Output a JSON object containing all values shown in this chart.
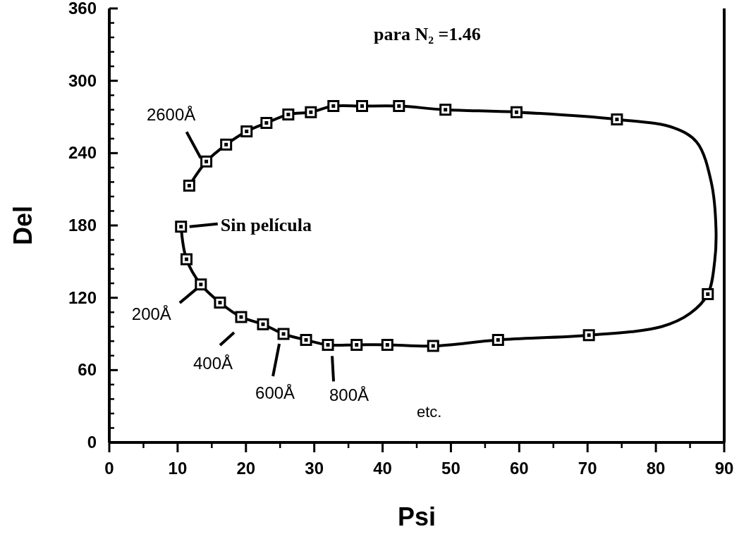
{
  "chart_data": {
    "type": "line",
    "title": "para N₂ =1.46",
    "xlabel": "Psi",
    "ylabel": "Del",
    "xlim": [
      0,
      90
    ],
    "ylim": [
      0,
      360
    ],
    "xticks": [
      0,
      10,
      20,
      30,
      40,
      50,
      60,
      70,
      80,
      90
    ],
    "yticks": [
      0,
      60,
      120,
      180,
      240,
      300,
      360
    ],
    "grid": false,
    "series": [
      {
        "color": "#000000",
        "x": [
          11.7,
          14.2,
          17.1,
          20.1,
          23.0,
          26.2,
          29.5,
          32.8,
          37.0,
          42.4,
          49.2,
          59.6,
          74.3,
          82.6,
          86.0,
          88.1,
          88.8,
          88.6,
          87.6,
          85.0,
          80.8,
          70.2,
          56.9,
          47.4,
          40.7,
          36.2,
          32.0,
          28.8,
          25.5,
          22.5,
          19.3,
          16.2,
          13.4,
          11.3,
          10.5
        ],
        "values": [
          213,
          233,
          247,
          258,
          265,
          272,
          274,
          279,
          279,
          279,
          276,
          274,
          268,
          261,
          249,
          216,
          177,
          150,
          123,
          107,
          96,
          89,
          85,
          80,
          81,
          81,
          81,
          85,
          90,
          98,
          104,
          116,
          131,
          152,
          179
        ]
      },
      {
        "type": "scatter",
        "color": "#000000",
        "marker": "square",
        "x": [
          11.7,
          14.2,
          17.1,
          20.1,
          23.0,
          26.2,
          29.5,
          32.8,
          37.0,
          42.4,
          49.2,
          59.6,
          74.3,
          87.6,
          70.2,
          56.9,
          47.4,
          40.7,
          36.2,
          32.0,
          28.8,
          25.5,
          22.5,
          19.3,
          16.2,
          13.4,
          11.3,
          10.5
        ],
        "values": [
          213,
          233,
          247,
          258,
          265,
          272,
          274,
          279,
          279,
          279,
          276,
          274,
          268,
          123,
          89,
          85,
          80,
          81,
          81,
          81,
          85,
          90,
          98,
          104,
          116,
          131,
          152,
          179
        ]
      }
    ],
    "annotations": [
      {
        "text": "2600Å",
        "x": 14.2,
        "y": 233
      },
      {
        "text": "Sin película",
        "x": 10.5,
        "y": 179
      },
      {
        "text": "200Å",
        "x": 13.4,
        "y": 131
      },
      {
        "text": "400Å",
        "x": 19.3,
        "y": 104
      },
      {
        "text": "600Å",
        "x": 25.5,
        "y": 90
      },
      {
        "text": "800Å",
        "x": 32.0,
        "y": 81
      },
      "etc."
    ]
  }
}
